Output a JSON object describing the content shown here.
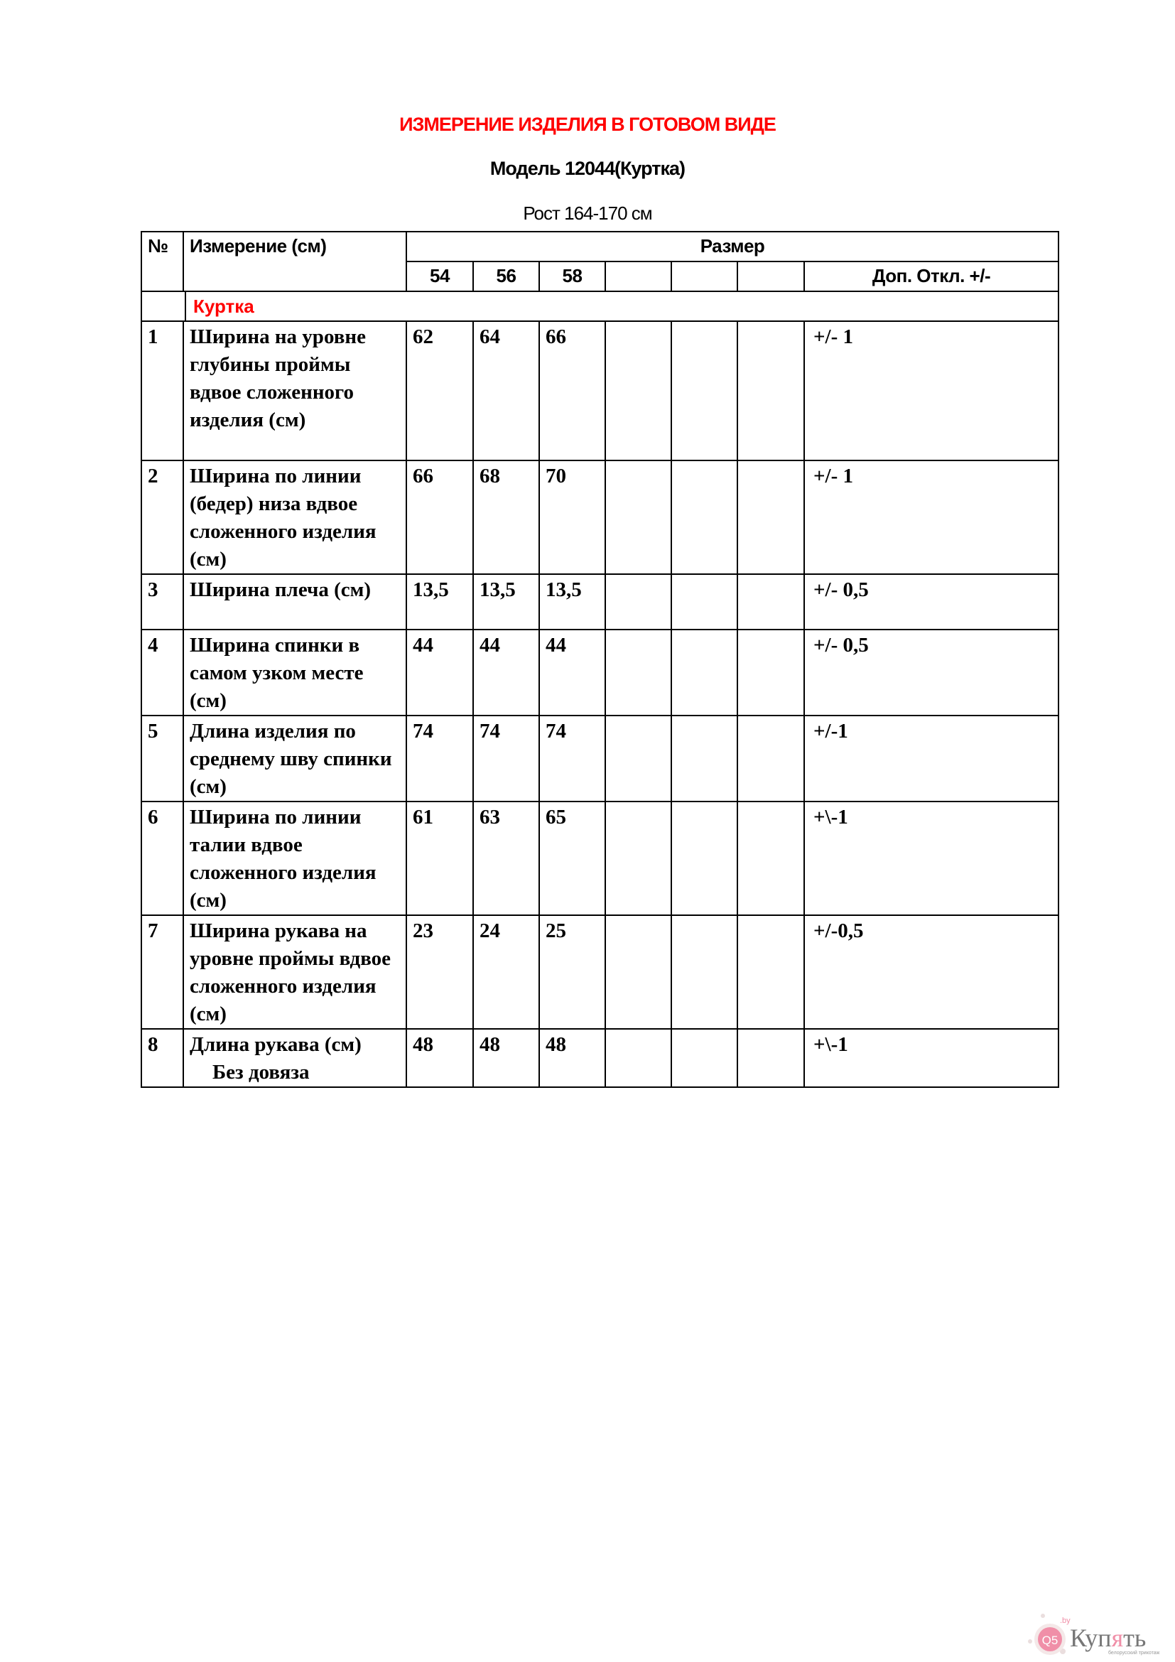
{
  "title": "ИЗМЕРЕНИЕ ИЗДЕЛИЯ В ГОТОВОМ ВИДЕ",
  "model": "Модель 12044(Куртка)",
  "height": "Рост 164-170 см",
  "colors": {
    "title": "#ff0000",
    "section": "#ff0000",
    "logo_pink": "#f08fa8",
    "logo_gray": "#777777"
  },
  "table": {
    "header": {
      "no": "№",
      "measure": "Измерение (см)",
      "size": "Размер",
      "sizes": [
        "54",
        "56",
        "58",
        "",
        "",
        ""
      ],
      "tolerance": "Доп.  Откл. +/-"
    },
    "section": "Куртка",
    "rows": [
      {
        "no": "1",
        "name": "Ширина на уровне глубины проймы вдвое сложенного изделия (см)",
        "values": [
          "62",
          "64",
          "66"
        ],
        "tol": "+/- 1"
      },
      {
        "no": "2",
        "name": "Ширина по линии (бедер) низа вдвое сложенного изделия (см)",
        "values": [
          "66",
          "68",
          "70"
        ],
        "tol": "+/- 1"
      },
      {
        "no": "3",
        "name": "Ширина плеча (см)",
        "values": [
          "13,5",
          "13,5",
          "13,5"
        ],
        "tol": "+/- 0,5"
      },
      {
        "no": "4",
        "name": "Ширина спинки в самом узком месте (см)",
        "values": [
          "44",
          "44",
          "44"
        ],
        "tol": "+/- 0,5"
      },
      {
        "no": "5",
        "name": "Длина изделия по среднему шву спинки (см)",
        "values": [
          "74",
          "74",
          "74"
        ],
        "tol": "+/-1"
      },
      {
        "no": "6",
        "name": "Ширина по линии талии вдвое сложенного изделия (см)",
        "values": [
          "61",
          "63",
          "65"
        ],
        "tol": "+\\-1"
      },
      {
        "no": "7",
        "name": "Ширина рукава на уровне проймы вдвое сложенного изделия (см)",
        "values": [
          "23",
          "24",
          "25"
        ],
        "tol": "+/-0,5"
      },
      {
        "no": "8",
        "name": "Длина рукава (см)",
        "note": "Без довяза",
        "values": [
          "48",
          "48",
          "48"
        ],
        "tol": "+\\-1"
      }
    ]
  },
  "logo": {
    "badge": "Q5",
    "domain": ".by",
    "name": "Купять",
    "tagline": "белорусский трикотаж"
  }
}
